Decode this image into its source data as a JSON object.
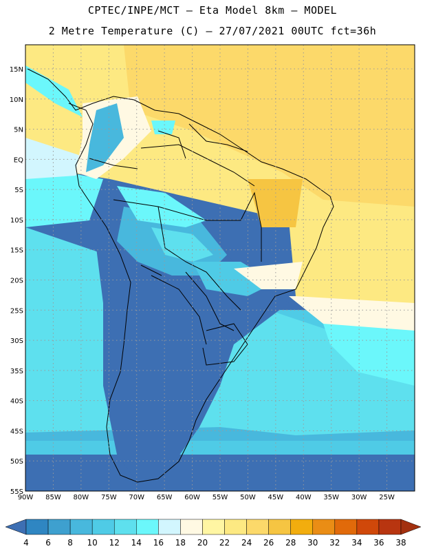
{
  "titles": {
    "line1": "CPTEC/INPE/MCT –  Eta Model 8km – MODEL",
    "line2": "2 Metre Temperature (C) – 27/07/2021 00UTC fct=36h"
  },
  "map": {
    "lon_range": [
      -90,
      -20
    ],
    "lat_range": [
      -55,
      19
    ],
    "lat_labels": [
      "15N",
      "10N",
      "5N",
      "EQ",
      "5S",
      "10S",
      "15S",
      "20S",
      "25S",
      "30S",
      "35S",
      "40S",
      "45S",
      "50S",
      "55S"
    ],
    "lat_values": [
      15,
      10,
      5,
      0,
      -5,
      -10,
      -15,
      -20,
      -25,
      -30,
      -35,
      -40,
      -45,
      -50,
      -55
    ],
    "lon_labels": [
      "90W",
      "85W",
      "80W",
      "75W",
      "70W",
      "65W",
      "60W",
      "55W",
      "50W",
      "45W",
      "40W",
      "35W",
      "30W",
      "25W"
    ],
    "lon_values": [
      -90,
      -85,
      -80,
      -75,
      -70,
      -65,
      -60,
      -55,
      -50,
      -45,
      -40,
      -35,
      -30,
      -25
    ],
    "grid": "dotted"
  },
  "colorbar": {
    "labels": [
      "4",
      "6",
      "8",
      "10",
      "12",
      "14",
      "16",
      "18",
      "20",
      "22",
      "24",
      "26",
      "28",
      "30",
      "32",
      "34",
      "36",
      "38"
    ],
    "colors": [
      "#3d6fb3",
      "#2f86c2",
      "#3ea0cf",
      "#48b8dd",
      "#4fcbe6",
      "#5ee0ee",
      "#6bf7fb",
      "#d2f6fe",
      "#fff9e3",
      "#fff6a3",
      "#fde982",
      "#fcd96a",
      "#f6c542",
      "#f2ad0e",
      "#ea8d15",
      "#e16a0a",
      "#d0480a",
      "#b83510",
      "#a3300f"
    ]
  }
}
